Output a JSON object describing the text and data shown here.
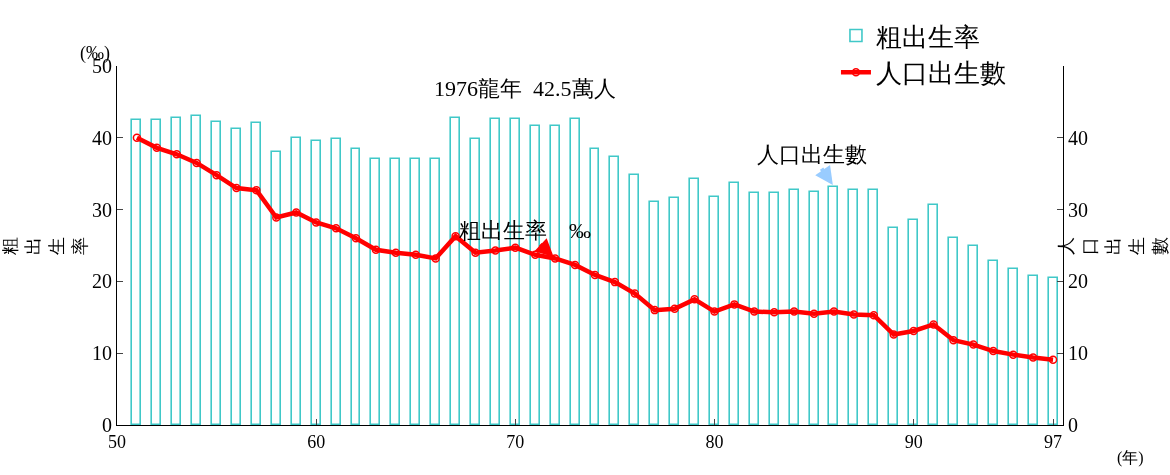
{
  "chart_data": {
    "type": "bar",
    "ylabel": "粗出生率",
    "y2label": "人口出生數",
    "legend": "top right",
    "x": [
      51,
      52,
      53,
      54,
      55,
      56,
      57,
      58,
      59,
      60,
      61,
      62,
      63,
      64,
      65,
      66,
      67,
      68,
      69,
      70,
      71,
      72,
      73,
      74,
      75,
      76,
      77,
      78,
      79,
      80,
      81,
      82,
      83,
      84,
      85,
      86,
      87,
      88,
      89,
      90,
      91,
      92,
      93,
      94,
      95,
      96,
      97
    ],
    "xlim": [
      50,
      97.5
    ],
    "xticks": [
      50,
      60,
      70,
      80,
      90,
      97
    ],
    "ylim": [
      0,
      50
    ],
    "yticks": [
      0,
      10,
      20,
      30,
      40,
      50
    ],
    "y2lim": [
      0,
      50
    ],
    "y2ticks": [
      0,
      10,
      20,
      30,
      40
    ],
    "series": [
      {
        "name": "粗出生率",
        "color": "#40c8c8",
        "values": [
          42.5,
          42.5,
          42.8,
          43.0,
          42.2,
          41.2,
          42.0,
          38.0,
          40.0,
          39.5,
          39.8,
          38.5,
          37.0,
          37.1,
          37.1,
          37.1,
          42.8,
          39.9,
          42.6,
          42.6,
          41.7,
          41.7,
          42.6,
          38.5,
          37.3,
          34.8,
          31.1,
          31.6,
          34.3,
          31.7,
          33.7,
          32.3,
          32.3,
          32.8,
          32.5,
          33.2,
          32.8,
          32.8,
          27.4,
          28.6,
          30.6,
          26.1,
          25.0,
          22.8,
          21.7,
          20.8,
          20.5
        ]
      },
      {
        "name": "人口出生數",
        "type": "line",
        "axis": "y2",
        "color": "#ff0000",
        "marker": "circle",
        "line_style": "solid",
        "values": [
          40.0,
          38.6,
          37.7,
          36.5,
          34.8,
          33.0,
          32.7,
          28.9,
          29.6,
          28.2,
          27.4,
          26.0,
          24.4,
          24.0,
          23.7,
          23.2,
          26.3,
          24.0,
          24.3,
          24.7,
          23.7,
          23.2,
          22.3,
          20.9,
          19.9,
          18.3,
          16.0,
          16.2,
          17.5,
          15.8,
          16.8,
          15.8,
          15.7,
          15.8,
          15.5,
          15.8,
          15.4,
          15.3,
          12.6,
          13.1,
          14.0,
          11.8,
          11.2,
          10.3,
          9.8,
          9.4,
          9.1
        ]
      }
    ],
    "annotations": [
      "(‰)",
      "(年)",
      "1976龍年  42.5萬人",
      {
        "text": "粗出生率　‰",
        "x": 72,
        "y": 23.2
      },
      {
        "text": "人口出生數",
        "x": 86,
        "y": 33.2
      }
    ]
  }
}
